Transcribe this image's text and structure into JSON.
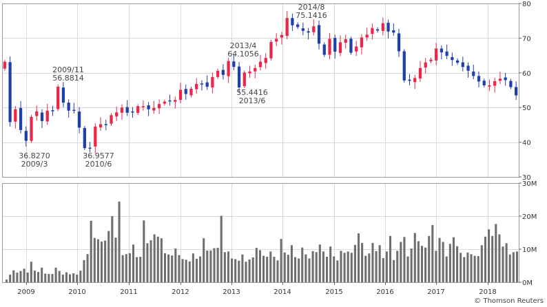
{
  "chart_data": [
    {
      "type": "candlestick",
      "grid": true,
      "colors": {
        "up": "#e8274b",
        "down": "#1f3faa"
      },
      "ylim": [
        30,
        80
      ],
      "yticks": [
        "30",
        "40",
        "50",
        "60",
        "70",
        "80"
      ],
      "xticks": [
        "2009",
        "2010",
        "2011",
        "2012",
        "2013",
        "2014",
        "2015",
        "2016",
        "2017",
        "2018"
      ],
      "close_series": [
        63.2,
        45.8,
        49.5,
        43.5,
        40.4,
        47.3,
        48.9,
        46.1,
        49.1,
        49.2,
        56.0,
        51.4,
        49.1,
        49.2,
        44.2,
        38.3,
        38.4,
        44.5,
        45.2,
        45.1,
        47.8,
        48.6,
        50.0,
        48.5,
        48.7,
        50.4,
        50.4,
        49.5,
        49.9,
        51.0,
        51.7,
        51.9,
        52.2,
        55.1,
        53.9,
        55.4,
        56.8,
        56.9,
        56.0,
        58.8,
        60.6,
        59.4,
        63.4,
        61.7,
        55.8,
        60.1,
        60.4,
        61.4,
        63.2,
        64.3,
        68.9,
        69.8,
        70.9,
        75.8,
        73.7,
        73.2,
        72.1,
        71.6,
        73.4,
        68.4,
        65.2,
        69.8,
        66.1,
        68.8,
        69.7,
        65.8,
        67.6,
        70.2,
        71.0,
        72.9,
        72.2,
        74.3,
        71.9,
        71.6,
        66.2,
        57.8,
        57.7,
        58.5,
        61.4,
        63.0,
        63.8,
        67.0,
        65.9,
        64.9,
        63.7,
        62.9,
        61.7,
        60.6,
        59.1,
        57.5,
        56.4,
        56.4,
        57.6,
        58.3,
        57.9,
        55.9,
        53.5
      ]
    },
    {
      "type": "bar",
      "ylim": [
        0,
        30
      ],
      "yticks": [
        "0M",
        "10M",
        "20M",
        "30M"
      ],
      "xticks": [
        "2009",
        "2010",
        "2011",
        "2012",
        "2013",
        "2014",
        "2015",
        "2016",
        "2017",
        "2018"
      ],
      "values": [
        0.8,
        2.3,
        3.6,
        2.9,
        3.4,
        4.1,
        2.9,
        6.2,
        3.5,
        3.1,
        4.4,
        2.6,
        2.5,
        2.5,
        4.4,
        3.4,
        2.3,
        3.0,
        2.4,
        2.7,
        2.3,
        3.5,
        6.7,
        8.5,
        18.6,
        13.4,
        13.0,
        12.3,
        12.6,
        15.5,
        20.0,
        13.5,
        24.4,
        8.2,
        8.5,
        8.8,
        11.4,
        7.6,
        7.7,
        18.7,
        11.8,
        12.7,
        14.5,
        13.8,
        13.3,
        8.8,
        8.4,
        8.1,
        10.2,
        8.2,
        7.0,
        6.8,
        6.3,
        8.7,
        7.1,
        7.8,
        13.3,
        9.6,
        9.6,
        10.3,
        10.4,
        20.1,
        9.1,
        9.3,
        7.2,
        7.0,
        6.5,
        8.4,
        6.2,
        6.9,
        7.5,
        10.4,
        9.7,
        8.0,
        7.7,
        9.3,
        7.7,
        6.6,
        13.1,
        9.0,
        8.3,
        11.2,
        7.6,
        7.2,
        10.5,
        8.4,
        7.2,
        9.4,
        9.1,
        11.4,
        9.3,
        7.7,
        10.8,
        7.8,
        6.6,
        9.5,
        8.9,
        9.3,
        8.9,
        11.3,
        14.8,
        11.9,
        8.0,
        8.7,
        11.9,
        9.4,
        11.2,
        7.3,
        9.3,
        14.0,
        6.7,
        9.5,
        12.2,
        13.7,
        7.8,
        10.2,
        14.9,
        12.4,
        11.0,
        10.5,
        14.0,
        17.3,
        9.5,
        13.4,
        12.2,
        7.8,
        11.6,
        13.6,
        10.9,
        8.9,
        7.6,
        9.0,
        8.5,
        8.0,
        7.9,
        11.2,
        13.8,
        16.0,
        14.0,
        17.6,
        14.5,
        10.8,
        11.8,
        8.4,
        9.1,
        9.3
      ]
    }
  ],
  "annotations": [
    {
      "value": "36.8270",
      "date": "2009/3"
    },
    {
      "value": "56.8814",
      "date": "2009/11"
    },
    {
      "value": "36.9577",
      "date": "2010/6"
    },
    {
      "value": "64.1056",
      "date": "2013/4"
    },
    {
      "value": "55.4416",
      "date": "2013/6"
    },
    {
      "value": "75.1416",
      "date": "2014/8"
    }
  ],
  "credit": "© Thomson Reuters"
}
